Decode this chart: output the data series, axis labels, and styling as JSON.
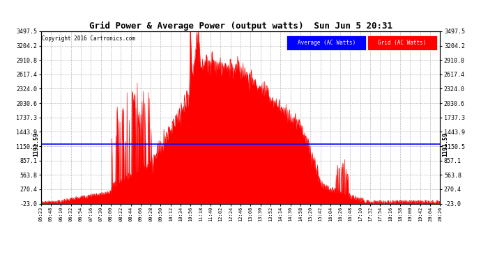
{
  "title": "Grid Power & Average Power (output watts)  Sun Jun 5 20:31",
  "copyright": "Copyright 2016 Cartronics.com",
  "average_value": 1191.59,
  "y_min": -23.0,
  "y_max": 3497.5,
  "yticks": [
    -23.0,
    270.4,
    563.8,
    857.1,
    1150.5,
    1443.9,
    1737.3,
    2030.6,
    2324.0,
    2617.4,
    2910.8,
    3204.2,
    3497.5
  ],
  "ytick_labels": [
    "-23.0",
    "270.4",
    "563.8",
    "857.1",
    "1150.5",
    "1443.9",
    "1737.3",
    "2030.6",
    "2324.0",
    "2617.4",
    "2910.8",
    "3204.2",
    "3497.5"
  ],
  "background_color": "#ffffff",
  "fill_color": "#ff0000",
  "line_color": "#ff0000",
  "average_line_color": "#0000ff",
  "grid_color": "#b0b0b0",
  "title_color": "#000000",
  "legend_avg_bg": "#0000ff",
  "legend_grid_bg": "#ff0000",
  "xtick_labels": [
    "05:23",
    "05:48",
    "06:10",
    "06:32",
    "06:54",
    "07:16",
    "07:30",
    "08:00",
    "08:22",
    "08:44",
    "09:06",
    "09:28",
    "09:50",
    "10:12",
    "10:34",
    "10:56",
    "11:18",
    "11:40",
    "12:02",
    "12:24",
    "12:46",
    "13:08",
    "13:30",
    "13:52",
    "14:14",
    "14:36",
    "14:58",
    "15:20",
    "15:42",
    "16:04",
    "16:26",
    "16:48",
    "17:10",
    "17:32",
    "17:54",
    "18:16",
    "18:38",
    "19:00",
    "19:42",
    "20:04",
    "20:26"
  ],
  "avg_label": "Average (AC Watts)",
  "grid_label": "Grid (AC Watts)"
}
